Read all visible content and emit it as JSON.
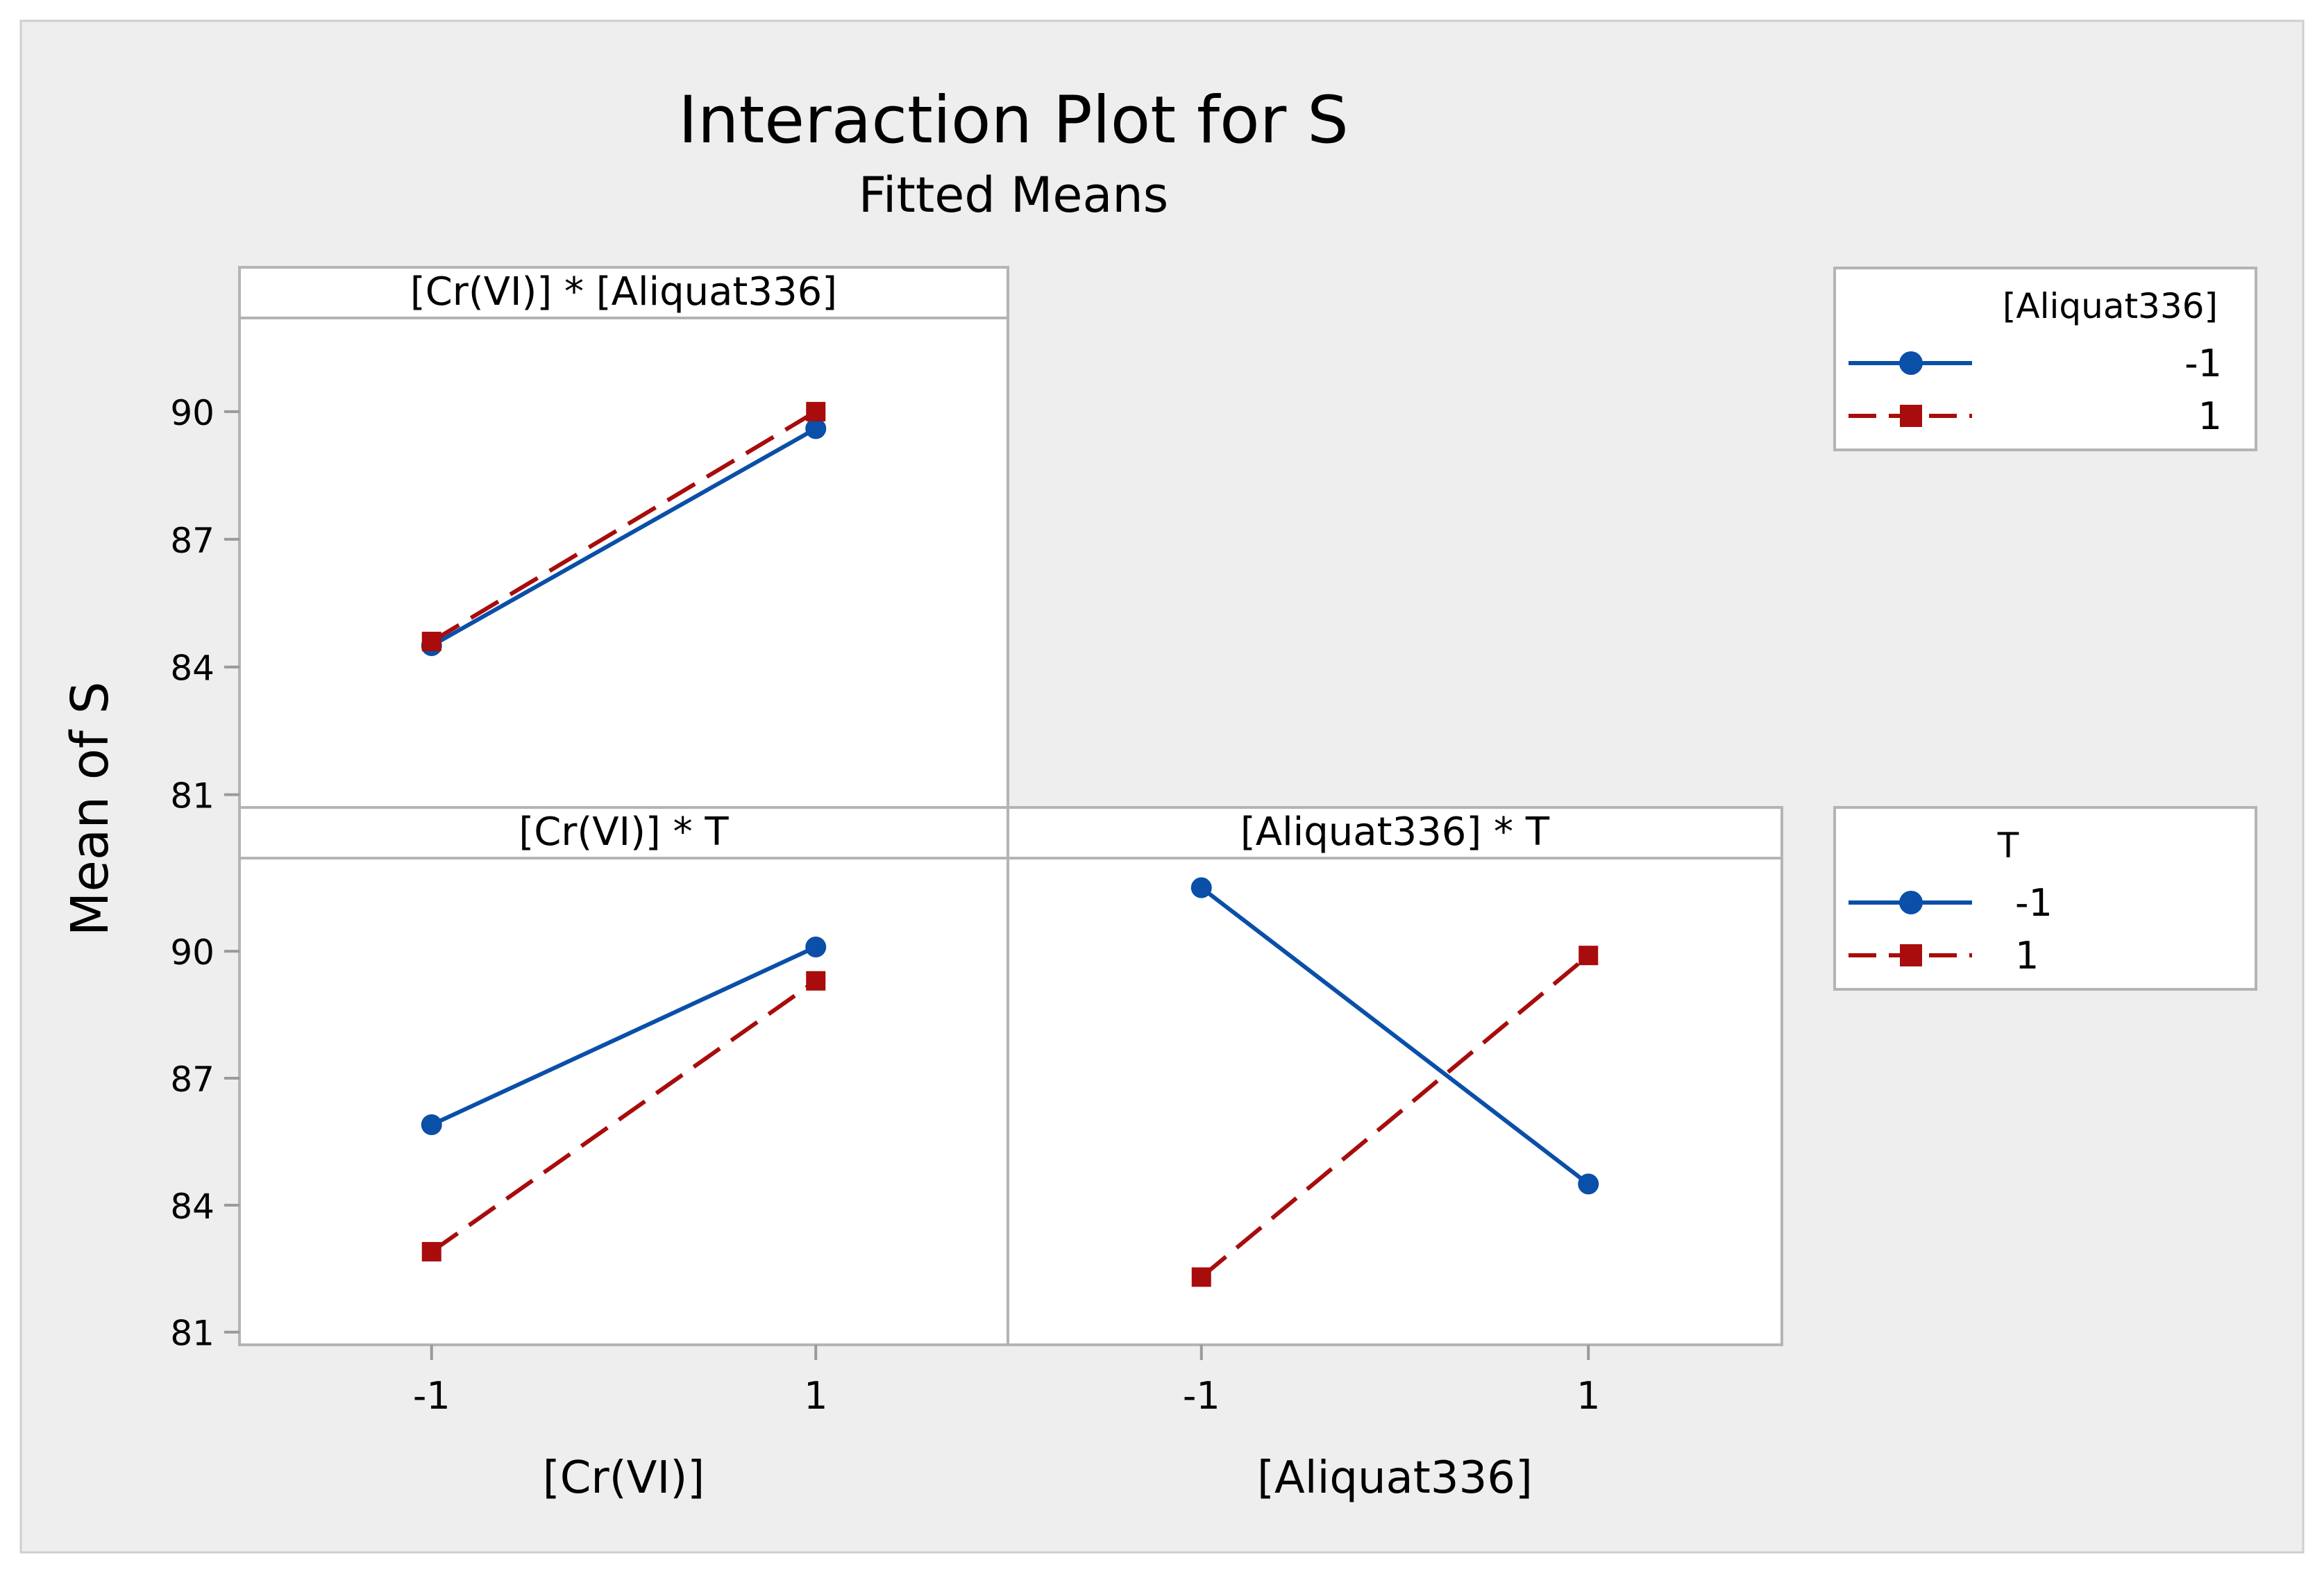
{
  "chart_data": {
    "type": "line",
    "title": "Interaction Plot for S",
    "subtitle": "Fitted Means",
    "ylabel": "Mean of S",
    "ylim": [
      80.7,
      92.2
    ],
    "yticks": [
      81,
      84,
      87,
      90
    ],
    "xticks": [
      "-1",
      "1"
    ],
    "x_values": [
      -1,
      1
    ],
    "legends": [
      {
        "title": "[Aliquat336]",
        "entries": [
          "-1",
          "1"
        ]
      },
      {
        "title": "T",
        "entries": [
          "-1",
          "1"
        ]
      }
    ],
    "panels": [
      {
        "id": "cr-aliquat",
        "title": "[Cr(VI)] * [Aliquat336]",
        "xlabel": "",
        "series": [
          {
            "name": "-1",
            "values": [
              84.5,
              89.6
            ]
          },
          {
            "name": "1",
            "values": [
              84.6,
              90.0
            ]
          }
        ]
      },
      {
        "id": "cr-t",
        "title": "[Cr(VI)] * T",
        "xlabel": "[Cr(VI)]",
        "series": [
          {
            "name": "-1",
            "values": [
              85.9,
              90.1
            ]
          },
          {
            "name": "1",
            "values": [
              82.9,
              89.3
            ]
          }
        ]
      },
      {
        "id": "aliquat-t",
        "title": "[Aliquat336] * T",
        "xlabel": "[Aliquat336]",
        "series": [
          {
            "name": "-1",
            "values": [
              91.5,
              84.5
            ]
          },
          {
            "name": "1",
            "values": [
              82.3,
              89.9
            ]
          }
        ]
      }
    ],
    "colors": {
      "series1": "#0a4fa8",
      "series2": "#a80c0c"
    }
  }
}
